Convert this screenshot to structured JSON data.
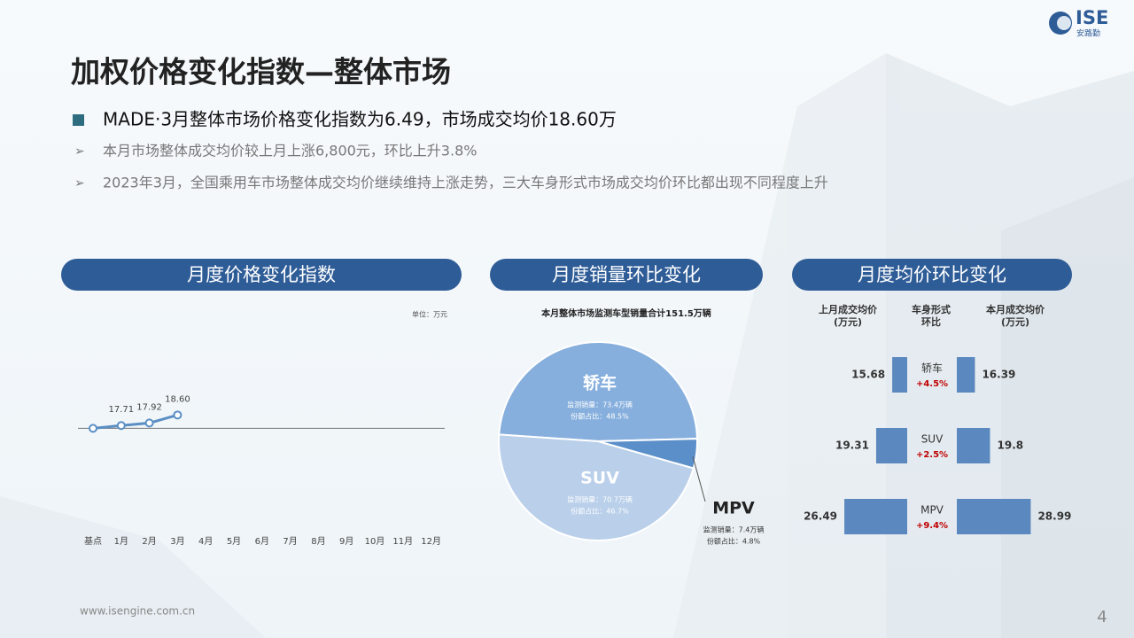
{
  "header": {
    "title": "加权价格变化指数—整体市场",
    "headline": "MADE·3月整体市场价格变化指数为6.49，市场成交均价18.60万",
    "bullets": [
      "本月市场整体成交均价较上月上涨6,800元，环比上升3.8%",
      "2023年3月，全国乘用车市场整体成交均价继续维持上涨走势，三大车身形式市场成交均价环比都出现不同程度上升"
    ]
  },
  "logo": {
    "name": "ISE",
    "subname": "安路勤"
  },
  "footer": {
    "url": "www.isengine.com.cn",
    "page": "4"
  },
  "chart_data": [
    {
      "type": "line",
      "title": "月度价格变化指数",
      "unit": "单位：万元",
      "categories": [
        "基点",
        "1月",
        "2月",
        "3月",
        "4月",
        "5月",
        "6月",
        "7月",
        "8月",
        "9月",
        "10月",
        "11月",
        "12月"
      ],
      "values": [
        17.47,
        17.71,
        17.92,
        18.6,
        null,
        null,
        null,
        null,
        null,
        null,
        null,
        null,
        null
      ],
      "value_labels": [
        null,
        "17.71",
        "17.92",
        "18.60",
        null,
        null,
        null,
        null,
        null,
        null,
        null,
        null,
        null
      ],
      "color": "#5b8fc4",
      "ylim": [
        13,
        22
      ]
    },
    {
      "type": "pie",
      "title": "月度销量环比变化",
      "subtitle": "本月整体市场监测车型销量合计151.5万辆",
      "categories": [
        "轿车",
        "SUV",
        "MPV"
      ],
      "values": [
        48.5,
        46.7,
        4.8
      ],
      "colors": [
        "#86afdd",
        "#b9cfea",
        "#5b8fc9"
      ],
      "sales_labels": [
        "监测销量：73.4万辆",
        "监测销量：70.7万辆",
        "监测销量：7.4万辆"
      ],
      "share_labels": [
        "份额占比：48.5%",
        "份额占比：46.7%",
        "份额占比：4.8%"
      ]
    },
    {
      "type": "bar",
      "title": "月度均价环比变化",
      "categories": [
        "轿车",
        "SUV",
        "MPV"
      ],
      "series": [
        {
          "name": "上月成交均价",
          "unit": "(万元)",
          "color": "#5b88bf",
          "values": [
            15.68,
            19.31,
            26.49
          ]
        },
        {
          "name": "本月成交均价",
          "unit": "(万元)",
          "color": "#5b88bf",
          "values": [
            16.39,
            19.8,
            28.99
          ]
        }
      ],
      "middle_header": [
        "车身形式",
        "环比"
      ],
      "change_labels": [
        "+4.5%",
        "+2.5%",
        "+9.4%"
      ],
      "xlim": [
        12.3,
        30
      ]
    }
  ]
}
